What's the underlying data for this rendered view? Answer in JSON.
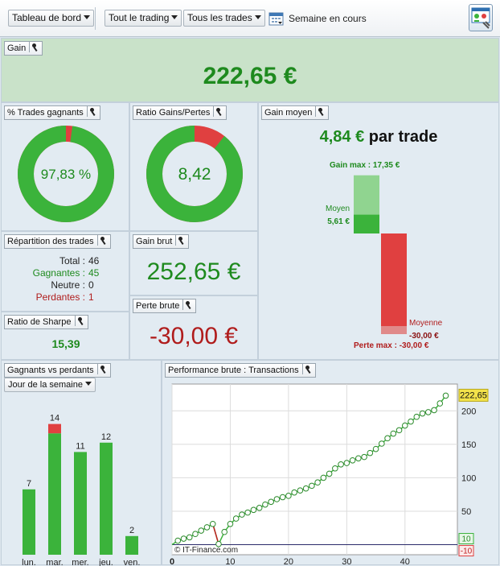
{
  "toolbar": {
    "dashboard_label": "Tableau de bord",
    "trading_label": "Tout le trading",
    "trades_label": "Tous les trades",
    "period_label": "Semaine en cours"
  },
  "gain": {
    "title": "Gain",
    "value": "222,65 €"
  },
  "pct_winners": {
    "title": "% Trades gagnants",
    "value": "97,83 %",
    "winning_fraction": 0.9783
  },
  "ratio": {
    "title": "Ratio Gains/Pertes",
    "value": "8,42",
    "gain_fraction": 0.894
  },
  "avg_gain": {
    "title": "Gain moyen",
    "value": "4,84 €",
    "suffix": "par trade",
    "gain_max_label": "Gain max :",
    "gain_max": "17,35 €",
    "avg_label": "Moyen",
    "avg_value": "5,61 €",
    "loss_avg_label": "Moyenne",
    "loss_avg_value": "-30,00 €",
    "loss_max_label": "Perte max :",
    "loss_max": "-30,00 €",
    "gain_max_num": 17.35,
    "avg_gain_num": 5.61,
    "loss_max_num": -30.0,
    "loss_avg_num": -30.0
  },
  "distribution": {
    "title": "Répartition des trades",
    "rows": [
      {
        "label": "Total :",
        "value": "46",
        "tone": "neutral"
      },
      {
        "label": "Gagnantes :",
        "value": "45",
        "tone": "win"
      },
      {
        "label": "Neutre :",
        "value": "0",
        "tone": "neutral"
      },
      {
        "label": "Perdantes :",
        "value": "1",
        "tone": "loss"
      }
    ]
  },
  "gross_gain": {
    "title": "Gain brut",
    "value": "252,65 €"
  },
  "gross_loss": {
    "title": "Perte brute",
    "value": "-30,00 €"
  },
  "sharpe": {
    "title": "Ratio de Sharpe",
    "value": "15,39"
  },
  "colors": {
    "win": "#3bb33b",
    "loss": "#e04040",
    "win_text": "#1e8a1e",
    "loss_text": "#b01c1c"
  },
  "chart_data": [
    {
      "type": "bar",
      "title": "Gagnants vs perdants",
      "selector": "Jour de la semaine",
      "categories": [
        "lun.",
        "mar.",
        "mer.",
        "jeu.",
        "ven."
      ],
      "series": [
        {
          "values": [
            7,
            13,
            11,
            12,
            2
          ]
        },
        {
          "values": [
            0,
            1,
            0,
            0,
            0
          ]
        }
      ],
      "totals": [
        7,
        14,
        11,
        12,
        2
      ],
      "stacked": true
    },
    {
      "type": "line",
      "title": "Performance brute : Transactions",
      "x_ticks": [
        0,
        10,
        20,
        30,
        40
      ],
      "y_ticks": [
        50,
        100,
        150,
        200
      ],
      "xlim": [
        0,
        49
      ],
      "ylim": [
        -15,
        240
      ],
      "last_value_label": "222,65",
      "band_high_label": "10",
      "band_low_label": "-10",
      "copyright": "© IT-Finance.com",
      "grid": true,
      "x": [
        1,
        2,
        3,
        4,
        5,
        6,
        7,
        8,
        9,
        10,
        11,
        12,
        13,
        14,
        15,
        16,
        17,
        18,
        19,
        20,
        21,
        22,
        23,
        24,
        25,
        26,
        27,
        28,
        29,
        30,
        31,
        32,
        33,
        34,
        35,
        36,
        37,
        38,
        39,
        40,
        41,
        42,
        43,
        44,
        45,
        46,
        47
      ],
      "y": [
        6,
        9,
        11,
        16,
        21,
        26,
        31,
        1,
        19,
        31,
        39,
        45,
        48,
        52,
        55,
        60,
        64,
        68,
        71,
        73,
        78,
        81,
        84,
        88,
        93,
        100,
        106,
        114,
        120,
        122,
        126,
        129,
        131,
        137,
        143,
        151,
        159,
        166,
        171,
        178,
        184,
        191,
        196,
        198,
        201,
        211,
        222.65
      ]
    }
  ]
}
